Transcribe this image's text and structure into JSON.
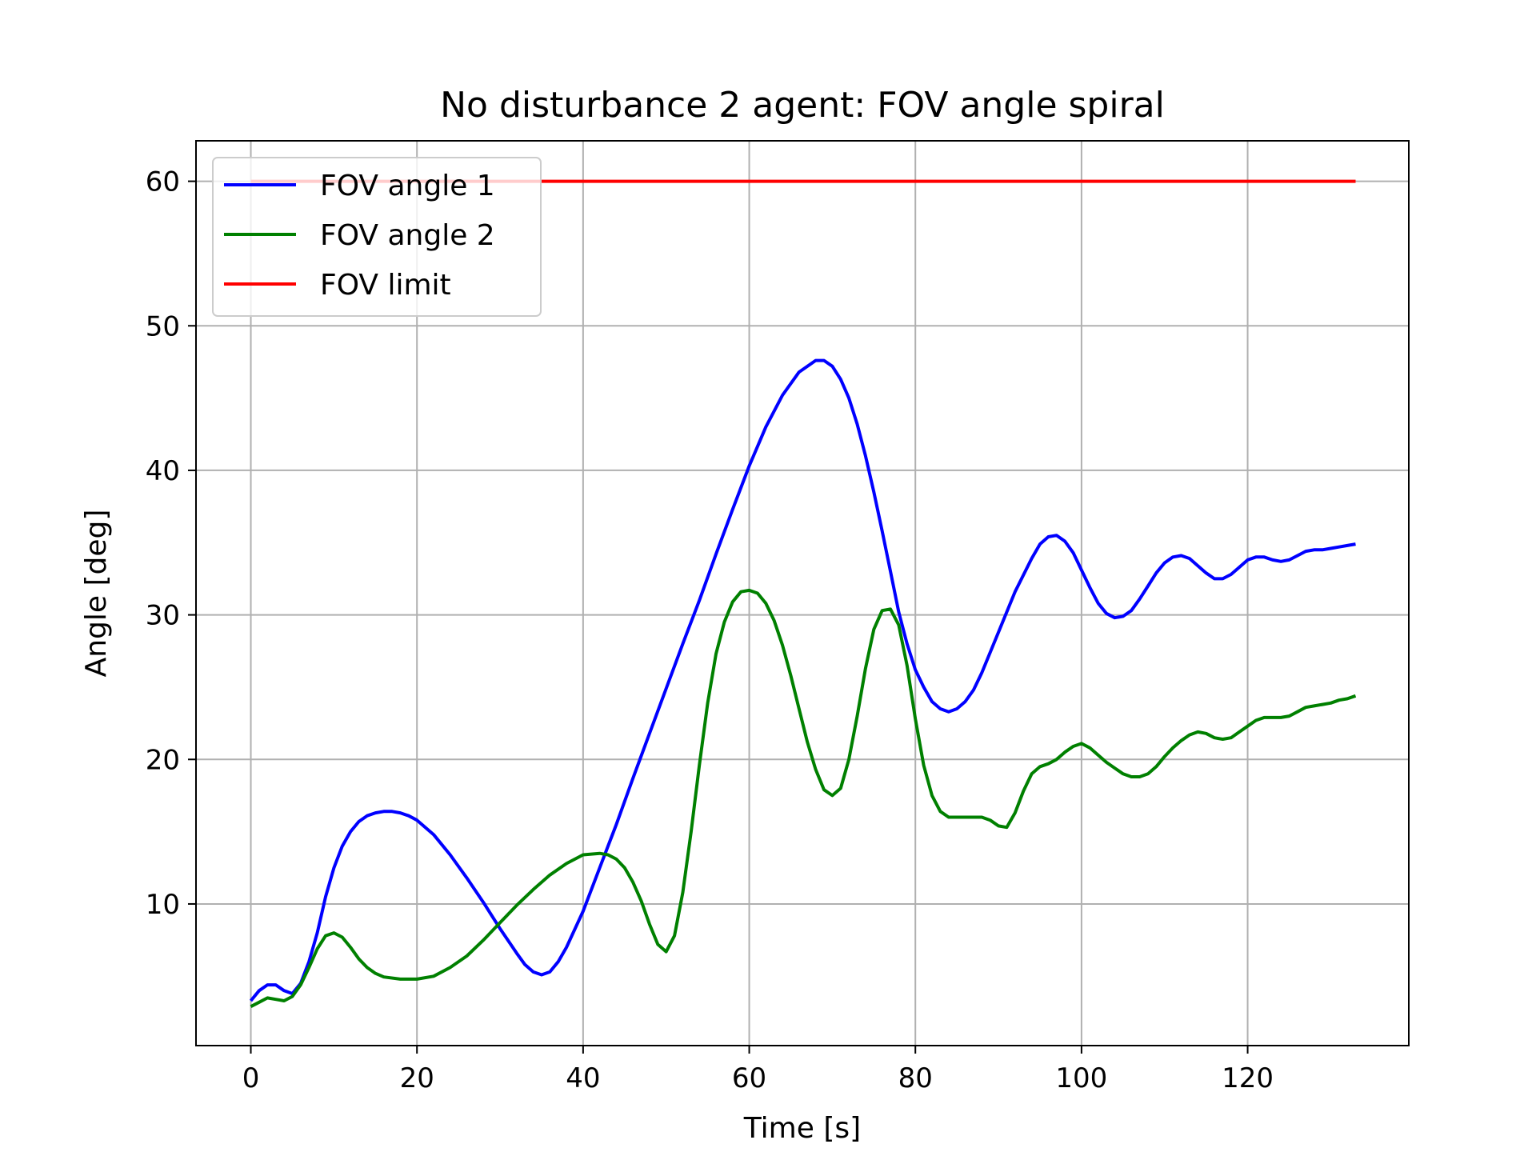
{
  "chart_data": {
    "type": "line",
    "title": "No disturbance 2 agent: FOV angle spiral",
    "xlabel": "Time [s]",
    "ylabel": "Angle [deg]",
    "xlim": [
      -6.6,
      139.4
    ],
    "ylim": [
      0.2,
      62.8
    ],
    "xticks": [
      0,
      20,
      40,
      60,
      80,
      100,
      120
    ],
    "yticks": [
      10,
      20,
      30,
      40,
      50,
      60
    ],
    "xtick_labels": [
      "0",
      "20",
      "40",
      "60",
      "80",
      "100",
      "120"
    ],
    "ytick_labels": [
      "10",
      "20",
      "30",
      "40",
      "50",
      "60"
    ],
    "grid": true,
    "legend_position": "top-left",
    "series": [
      {
        "name": "FOV angle 1",
        "color": "#0000ff",
        "points": [
          [
            0,
            3.3
          ],
          [
            1,
            4.0
          ],
          [
            2,
            4.4
          ],
          [
            3,
            4.4
          ],
          [
            4,
            4.0
          ],
          [
            5,
            3.8
          ],
          [
            6,
            4.5
          ],
          [
            7,
            6.0
          ],
          [
            8,
            8.0
          ],
          [
            9,
            10.5
          ],
          [
            10,
            12.5
          ],
          [
            11,
            14.0
          ],
          [
            12,
            15.0
          ],
          [
            13,
            15.7
          ],
          [
            14,
            16.1
          ],
          [
            15,
            16.3
          ],
          [
            16,
            16.4
          ],
          [
            17,
            16.4
          ],
          [
            18,
            16.3
          ],
          [
            19,
            16.1
          ],
          [
            20,
            15.8
          ],
          [
            22,
            14.8
          ],
          [
            24,
            13.4
          ],
          [
            26,
            11.8
          ],
          [
            28,
            10.1
          ],
          [
            30,
            8.3
          ],
          [
            32,
            6.6
          ],
          [
            33,
            5.8
          ],
          [
            34,
            5.3
          ],
          [
            35,
            5.1
          ],
          [
            36,
            5.3
          ],
          [
            37,
            6.0
          ],
          [
            38,
            7.0
          ],
          [
            40,
            9.5
          ],
          [
            42,
            12.5
          ],
          [
            44,
            15.5
          ],
          [
            46,
            18.7
          ],
          [
            48,
            21.8
          ],
          [
            50,
            24.9
          ],
          [
            52,
            28.0
          ],
          [
            54,
            31.0
          ],
          [
            56,
            34.2
          ],
          [
            58,
            37.3
          ],
          [
            60,
            40.3
          ],
          [
            62,
            43.0
          ],
          [
            64,
            45.2
          ],
          [
            66,
            46.8
          ],
          [
            68,
            47.6
          ],
          [
            69,
            47.6
          ],
          [
            70,
            47.2
          ],
          [
            71,
            46.3
          ],
          [
            72,
            45.0
          ],
          [
            73,
            43.2
          ],
          [
            74,
            41.0
          ],
          [
            75,
            38.5
          ],
          [
            76,
            35.8
          ],
          [
            77,
            33.0
          ],
          [
            78,
            30.2
          ],
          [
            79,
            28.0
          ],
          [
            80,
            26.2
          ],
          [
            81,
            25.0
          ],
          [
            82,
            24.0
          ],
          [
            83,
            23.5
          ],
          [
            84,
            23.3
          ],
          [
            85,
            23.5
          ],
          [
            86,
            24.0
          ],
          [
            87,
            24.8
          ],
          [
            88,
            26.0
          ],
          [
            90,
            28.8
          ],
          [
            92,
            31.6
          ],
          [
            94,
            33.9
          ],
          [
            95,
            34.9
          ],
          [
            96,
            35.4
          ],
          [
            97,
            35.5
          ],
          [
            98,
            35.1
          ],
          [
            99,
            34.3
          ],
          [
            100,
            33.1
          ],
          [
            101,
            31.9
          ],
          [
            102,
            30.8
          ],
          [
            103,
            30.1
          ],
          [
            104,
            29.8
          ],
          [
            105,
            29.9
          ],
          [
            106,
            30.3
          ],
          [
            107,
            31.1
          ],
          [
            108,
            32.0
          ],
          [
            109,
            32.9
          ],
          [
            110,
            33.6
          ],
          [
            111,
            34.0
          ],
          [
            112,
            34.1
          ],
          [
            113,
            33.9
          ],
          [
            114,
            33.4
          ],
          [
            115,
            32.9
          ],
          [
            116,
            32.5
          ],
          [
            117,
            32.5
          ],
          [
            118,
            32.8
          ],
          [
            119,
            33.3
          ],
          [
            120,
            33.8
          ],
          [
            121,
            34.0
          ],
          [
            122,
            34.0
          ],
          [
            123,
            33.8
          ],
          [
            124,
            33.7
          ],
          [
            125,
            33.8
          ],
          [
            126,
            34.1
          ],
          [
            127,
            34.4
          ],
          [
            128,
            34.5
          ],
          [
            129,
            34.5
          ],
          [
            130,
            34.6
          ],
          [
            131,
            34.7
          ],
          [
            132,
            34.8
          ],
          [
            133,
            34.9
          ]
        ]
      },
      {
        "name": "FOV angle 2",
        "color": "#008000",
        "points": [
          [
            0,
            2.9
          ],
          [
            1,
            3.2
          ],
          [
            2,
            3.5
          ],
          [
            3,
            3.4
          ],
          [
            4,
            3.3
          ],
          [
            5,
            3.6
          ],
          [
            6,
            4.4
          ],
          [
            7,
            5.6
          ],
          [
            8,
            6.9
          ],
          [
            9,
            7.8
          ],
          [
            10,
            8.0
          ],
          [
            11,
            7.7
          ],
          [
            12,
            7.0
          ],
          [
            13,
            6.2
          ],
          [
            14,
            5.6
          ],
          [
            15,
            5.2
          ],
          [
            16,
            4.95
          ],
          [
            18,
            4.8
          ],
          [
            20,
            4.8
          ],
          [
            22,
            5.0
          ],
          [
            24,
            5.6
          ],
          [
            26,
            6.4
          ],
          [
            28,
            7.5
          ],
          [
            30,
            8.7
          ],
          [
            32,
            9.9
          ],
          [
            34,
            11.0
          ],
          [
            36,
            12.0
          ],
          [
            38,
            12.8
          ],
          [
            40,
            13.4
          ],
          [
            42,
            13.5
          ],
          [
            43,
            13.4
          ],
          [
            44,
            13.1
          ],
          [
            45,
            12.5
          ],
          [
            46,
            11.5
          ],
          [
            47,
            10.2
          ],
          [
            48,
            8.6
          ],
          [
            49,
            7.2
          ],
          [
            50,
            6.7
          ],
          [
            51,
            7.8
          ],
          [
            52,
            10.8
          ],
          [
            53,
            15.0
          ],
          [
            54,
            19.6
          ],
          [
            55,
            23.9
          ],
          [
            56,
            27.3
          ],
          [
            57,
            29.5
          ],
          [
            58,
            30.9
          ],
          [
            59,
            31.6
          ],
          [
            60,
            31.7
          ],
          [
            61,
            31.5
          ],
          [
            62,
            30.8
          ],
          [
            63,
            29.6
          ],
          [
            64,
            27.9
          ],
          [
            65,
            25.8
          ],
          [
            66,
            23.5
          ],
          [
            67,
            21.2
          ],
          [
            68,
            19.3
          ],
          [
            69,
            17.9
          ],
          [
            70,
            17.5
          ],
          [
            71,
            18.0
          ],
          [
            72,
            20.0
          ],
          [
            73,
            23.0
          ],
          [
            74,
            26.3
          ],
          [
            75,
            29.0
          ],
          [
            76,
            30.3
          ],
          [
            77,
            30.4
          ],
          [
            78,
            29.3
          ],
          [
            79,
            26.5
          ],
          [
            80,
            22.8
          ],
          [
            81,
            19.6
          ],
          [
            82,
            17.5
          ],
          [
            83,
            16.4
          ],
          [
            84,
            16.0
          ],
          [
            85,
            16.0
          ],
          [
            86,
            16.0
          ],
          [
            87,
            16.0
          ],
          [
            88,
            16.0
          ],
          [
            89,
            15.8
          ],
          [
            90,
            15.4
          ],
          [
            91,
            15.3
          ],
          [
            92,
            16.3
          ],
          [
            93,
            17.8
          ],
          [
            94,
            19.0
          ],
          [
            95,
            19.5
          ],
          [
            96,
            19.7
          ],
          [
            97,
            20.0
          ],
          [
            98,
            20.5
          ],
          [
            99,
            20.9
          ],
          [
            100,
            21.1
          ],
          [
            101,
            20.8
          ],
          [
            102,
            20.3
          ],
          [
            103,
            19.8
          ],
          [
            104,
            19.4
          ],
          [
            105,
            19.0
          ],
          [
            106,
            18.8
          ],
          [
            107,
            18.8
          ],
          [
            108,
            19.0
          ],
          [
            109,
            19.5
          ],
          [
            110,
            20.2
          ],
          [
            111,
            20.8
          ],
          [
            112,
            21.3
          ],
          [
            113,
            21.7
          ],
          [
            114,
            21.9
          ],
          [
            115,
            21.8
          ],
          [
            116,
            21.5
          ],
          [
            117,
            21.4
          ],
          [
            118,
            21.5
          ],
          [
            119,
            21.9
          ],
          [
            120,
            22.3
          ],
          [
            121,
            22.7
          ],
          [
            122,
            22.9
          ],
          [
            123,
            22.9
          ],
          [
            124,
            22.9
          ],
          [
            125,
            23.0
          ],
          [
            126,
            23.3
          ],
          [
            127,
            23.6
          ],
          [
            128,
            23.7
          ],
          [
            129,
            23.8
          ],
          [
            130,
            23.9
          ],
          [
            131,
            24.1
          ],
          [
            132,
            24.2
          ],
          [
            133,
            24.4
          ]
        ]
      },
      {
        "name": "FOV limit",
        "color": "#ff0000",
        "points": [
          [
            0,
            60
          ],
          [
            133,
            60
          ]
        ]
      }
    ]
  }
}
